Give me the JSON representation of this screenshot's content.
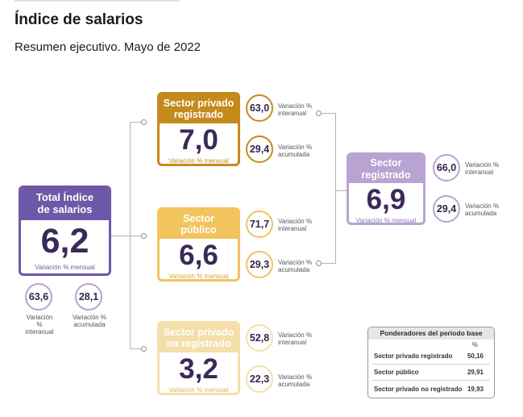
{
  "title": "Índice de salarios",
  "subtitle": "Resumen ejecutivo. Mayo de 2022",
  "colors": {
    "total": "#6e58a8",
    "privado": "#c48a1c",
    "publico": "#f2c45e",
    "no_registrado": "#f4dfaa",
    "registrado": "#b8a3d2",
    "value_text": "#3b2a57"
  },
  "total": {
    "label_line1": "Total Índice",
    "label_line2": "de salarios",
    "value": "6,2",
    "caption": "Variación % mensual",
    "interanual": "63,6",
    "interanual_label_1": "Variación %",
    "interanual_label_2": "interanual",
    "acumulada": "28,1",
    "acumulada_label_1": "Variación %",
    "acumulada_label_2": "acumulada"
  },
  "privado": {
    "label_line1": "Sector privado",
    "label_line2": "registrado",
    "value": "7,0",
    "caption": "Variación % mensual",
    "interanual": "63,0",
    "acumulada": "29,4",
    "lbl_a1": "Variación %",
    "lbl_a2": "interanual",
    "lbl_b1": "Variación %",
    "lbl_b2": "acumulada"
  },
  "publico": {
    "label_line1": "Sector",
    "label_line2": "público",
    "value": "6,6",
    "caption": "Variación % mensual",
    "interanual": "71,7",
    "acumulada": "29,3",
    "lbl_a1": "Variación %",
    "lbl_a2": "interanual",
    "lbl_b1": "Variación %",
    "lbl_b2": "acumulada"
  },
  "no_registrado": {
    "label_line1": "Sector privado",
    "label_line2": "no registrado",
    "value": "3,2",
    "caption": "Variación % mensual",
    "interanual": "52,8",
    "acumulada": "22,3",
    "lbl_a1": "Variación %",
    "lbl_a2": "interanual",
    "lbl_b1": "Variación %",
    "lbl_b2": "acumulada"
  },
  "registrado": {
    "label_line1": "Sector",
    "label_line2": "registrado",
    "value": "6,9",
    "caption": "Variación % mensual",
    "interanual": "66,0",
    "acumulada": "29,4",
    "lbl_a1": "Variación %",
    "lbl_a2": "interanual",
    "lbl_b1": "Variación %",
    "lbl_b2": "acumulada"
  },
  "ponderadores": {
    "title": "Ponderadores del período base",
    "unit": "%",
    "rows": [
      {
        "label": "Sector privado registrado",
        "value": "50,16"
      },
      {
        "label": "Sector público",
        "value": "29,91"
      },
      {
        "label": "Sector privado no registrado",
        "value": "19,93"
      }
    ]
  }
}
